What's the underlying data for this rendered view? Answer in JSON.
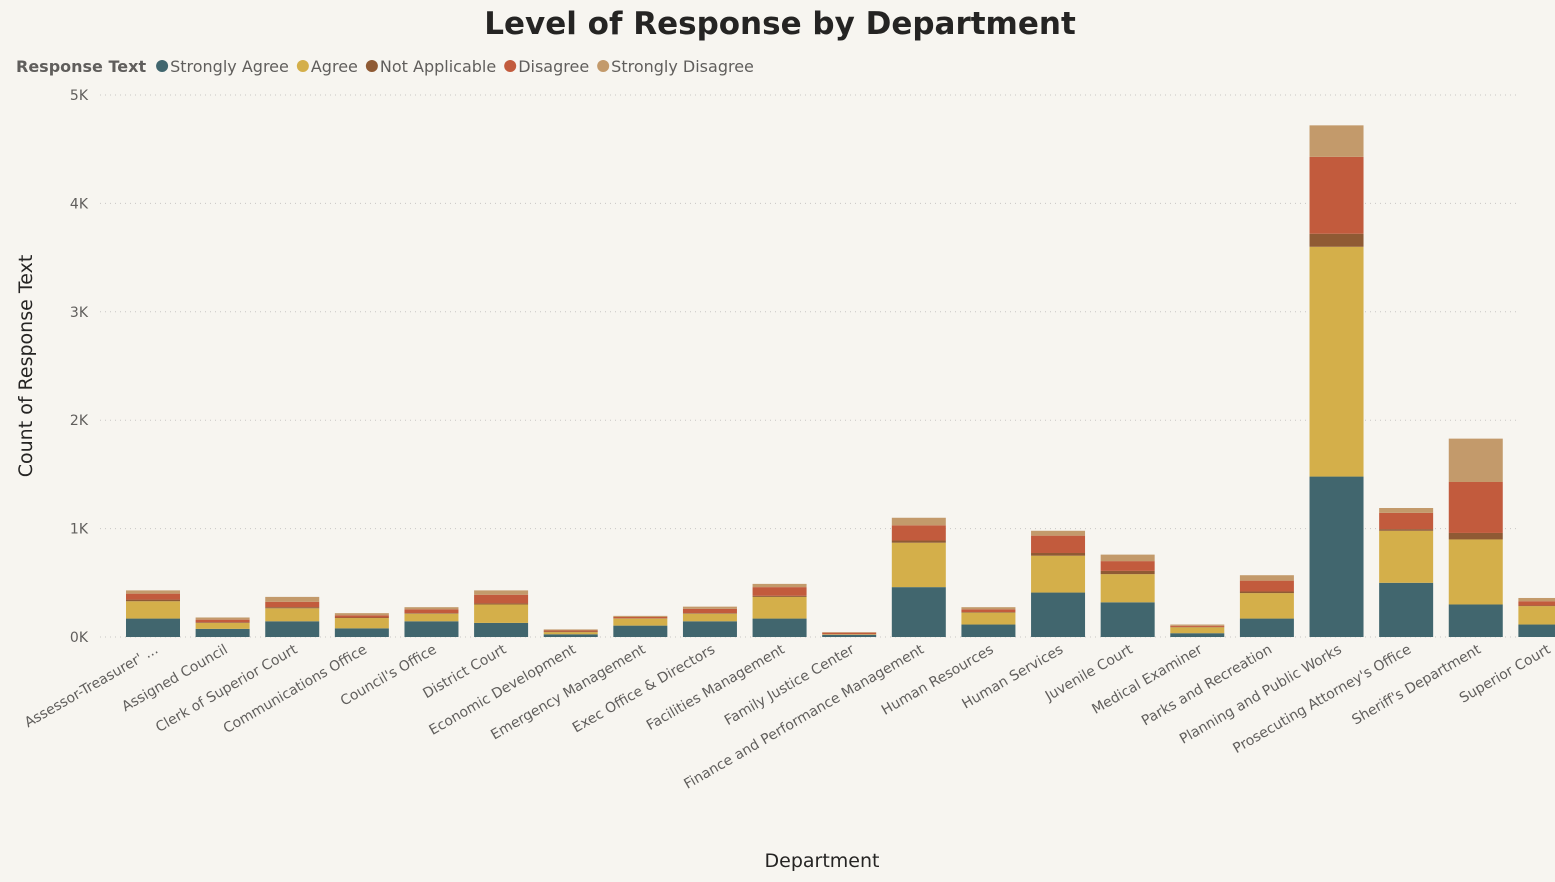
{
  "chart_data": {
    "type": "bar",
    "stacked": true,
    "title": "Level of Response by Department",
    "xlabel": "Department",
    "ylabel": "Count of Response Text",
    "ylim": [
      0,
      5000
    ],
    "yticks": [
      {
        "value": 0,
        "label": "0K"
      },
      {
        "value": 1000,
        "label": "1K"
      },
      {
        "value": 2000,
        "label": "2K"
      },
      {
        "value": 3000,
        "label": "3K"
      },
      {
        "value": 4000,
        "label": "4K"
      },
      {
        "value": 5000,
        "label": "5K"
      }
    ],
    "grid": true,
    "legend": {
      "title": "Response Text",
      "position": "top-left"
    },
    "categories": [
      "Assessor-Treasurer' ...",
      "Assigned Council",
      "Clerk of Superior Court",
      "Communications Office",
      "Council's Office",
      "District Court",
      "Economic Development",
      "Emergency Management",
      "Exec Office & Directors",
      "Facilities Management",
      "Family Justice Center",
      "Finance and Performance Management",
      "Human Resources",
      "Human Services",
      "Juvenile Court",
      "Medical Examiner",
      "Parks and Recreation",
      "Planning and Public Works",
      "Prosecuting Attorney's Office",
      "Sheriff's Department",
      "Superior Court"
    ],
    "series": [
      {
        "name": "Strongly Agree",
        "color": "#41666e",
        "values": [
          170,
          75,
          145,
          80,
          145,
          130,
          25,
          105,
          145,
          170,
          20,
          460,
          115,
          410,
          320,
          35,
          170,
          1480,
          500,
          300,
          115
        ]
      },
      {
        "name": "Agree",
        "color": "#d4af4a",
        "values": [
          160,
          55,
          120,
          95,
          70,
          170,
          20,
          65,
          70,
          200,
          5,
          410,
          110,
          340,
          260,
          55,
          235,
          2120,
          480,
          600,
          170
        ]
      },
      {
        "name": "Not Applicable",
        "color": "#8f5a34",
        "values": [
          15,
          5,
          10,
          5,
          5,
          10,
          5,
          3,
          5,
          10,
          2,
          20,
          5,
          25,
          30,
          3,
          15,
          120,
          15,
          60,
          5
        ]
      },
      {
        "name": "Disagree",
        "color": "#c25b3d",
        "values": [
          55,
          25,
          50,
          20,
          35,
          80,
          10,
          12,
          40,
          80,
          13,
          140,
          25,
          160,
          90,
          10,
          100,
          710,
          150,
          470,
          40
        ]
      },
      {
        "name": "Strongly Disagree",
        "color": "#c39a6b",
        "values": [
          30,
          20,
          45,
          20,
          20,
          40,
          10,
          10,
          20,
          30,
          5,
          70,
          20,
          45,
          60,
          12,
          50,
          290,
          45,
          400,
          30
        ]
      }
    ]
  }
}
